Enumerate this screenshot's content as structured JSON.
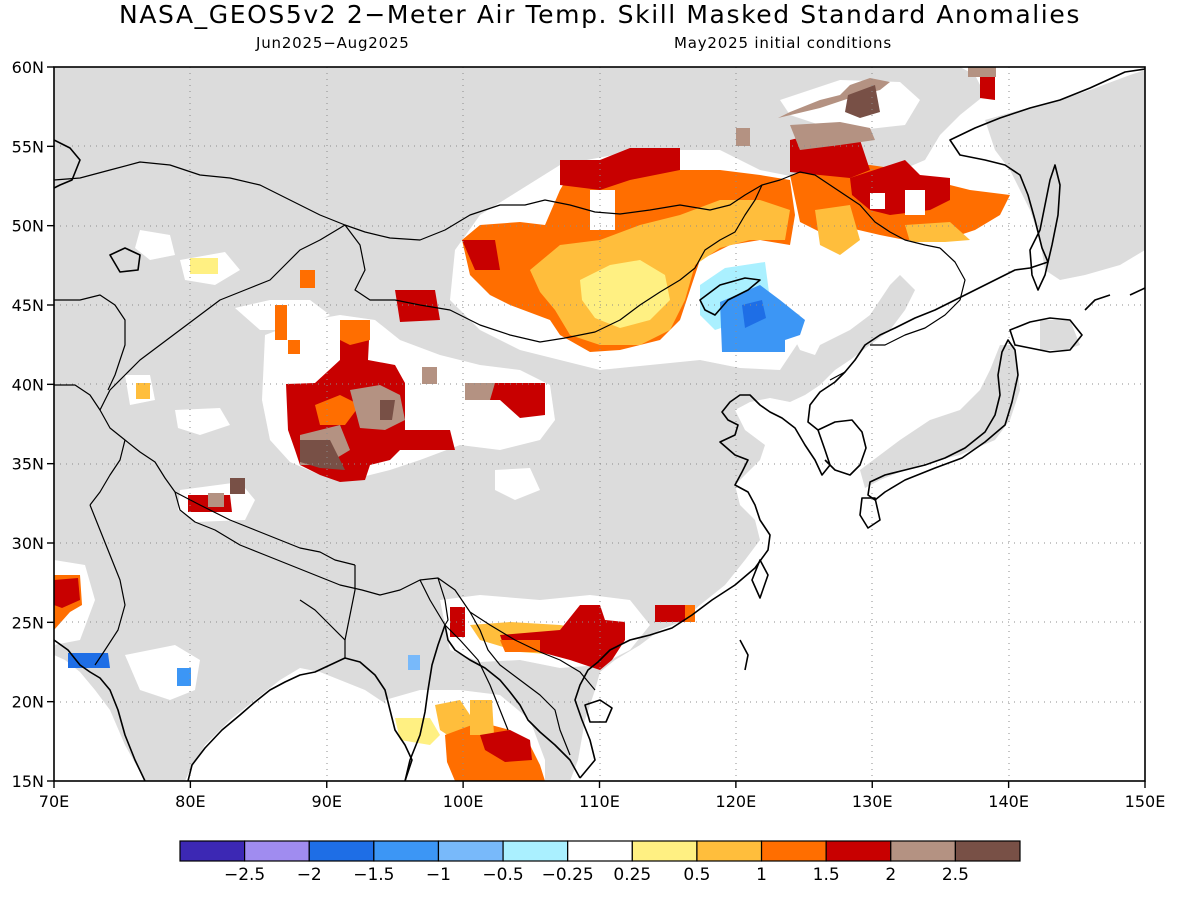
{
  "title": "NASA_GEOS5v2 2−Meter Air Temp. Skill Masked Standard Anomalies",
  "subtitle_left": "Jun2025−Aug2025",
  "subtitle_right": "May2025 initial conditions",
  "map": {
    "lon_range": [
      70,
      150
    ],
    "lat_range": [
      15,
      60
    ],
    "x_ticks": [
      "70E",
      "80E",
      "90E",
      "100E",
      "110E",
      "120E",
      "130E",
      "140E",
      "150E"
    ],
    "y_ticks": [
      "15N",
      "20N",
      "25N",
      "30N",
      "35N",
      "40N",
      "45N",
      "50N",
      "55N",
      "60N"
    ],
    "gridlines": "dotted",
    "land_mask_color": "#dcdcdc",
    "ocean_color": "#ffffff",
    "coastline_color": "#000000"
  },
  "colorbar": {
    "colors": [
      "#3c28b4",
      "#a08cf0",
      "#1e6ee6",
      "#3c96f5",
      "#78b9fa",
      "#aaf0ff",
      "#ffffff",
      "#fff082",
      "#ffbe3c",
      "#ff6e00",
      "#c80000",
      "#b49282",
      "#785046"
    ],
    "labels": [
      "−2.5",
      "−2",
      "−1.5",
      "−1",
      "−0.5",
      "−0.25",
      "0.25",
      "0.5",
      "1",
      "1.5",
      "2",
      "2.5"
    ]
  }
}
